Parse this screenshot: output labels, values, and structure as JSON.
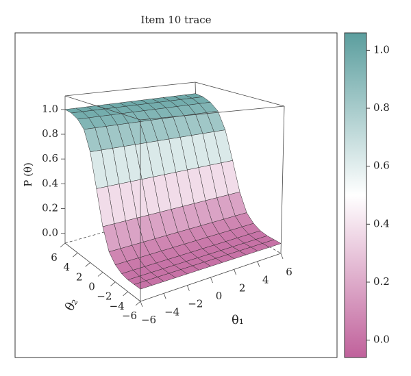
{
  "chart_data": {
    "type": "surface",
    "title": "Item 10 trace",
    "xlabel": "θ₁",
    "ylabel": "θ₂",
    "zlabel": "P (θ)",
    "x": [
      -6,
      -5,
      -4,
      -3,
      -2,
      -1,
      0,
      1,
      2,
      3,
      4,
      5,
      6
    ],
    "y": [
      -6,
      -5,
      -4,
      -3,
      -2,
      -1,
      0,
      1,
      2,
      3,
      4,
      5,
      6
    ],
    "z": [
      [
        0.0,
        0.0,
        0.0,
        0.0,
        0.0,
        0.0,
        0.0,
        0.0,
        0.0,
        0.0,
        0.0,
        0.0,
        0.0
      ],
      [
        0.0,
        0.0,
        0.0,
        0.0,
        0.0,
        0.0,
        0.0,
        0.0,
        0.0,
        0.0,
        0.0,
        0.0,
        0.0
      ],
      [
        0.0,
        0.0,
        0.0,
        0.0,
        0.0,
        0.0,
        0.0,
        0.0,
        0.0,
        0.0,
        0.0,
        0.0,
        0.0
      ],
      [
        0.01,
        0.01,
        0.01,
        0.01,
        0.01,
        0.01,
        0.01,
        0.01,
        0.01,
        0.01,
        0.01,
        0.01,
        0.01
      ],
      [
        0.04,
        0.04,
        0.04,
        0.04,
        0.04,
        0.04,
        0.04,
        0.04,
        0.04,
        0.04,
        0.04,
        0.04,
        0.04
      ],
      [
        0.1,
        0.1,
        0.1,
        0.1,
        0.1,
        0.1,
        0.1,
        0.1,
        0.1,
        0.1,
        0.1,
        0.1,
        0.1
      ],
      [
        0.25,
        0.25,
        0.25,
        0.25,
        0.25,
        0.25,
        0.25,
        0.25,
        0.25,
        0.25,
        0.25,
        0.25,
        0.25
      ],
      [
        0.5,
        0.5,
        0.5,
        0.5,
        0.5,
        0.5,
        0.5,
        0.5,
        0.5,
        0.5,
        0.5,
        0.5,
        0.5
      ],
      [
        0.75,
        0.75,
        0.75,
        0.75,
        0.75,
        0.75,
        0.75,
        0.75,
        0.75,
        0.75,
        0.75,
        0.75,
        0.75
      ],
      [
        0.9,
        0.9,
        0.9,
        0.9,
        0.9,
        0.9,
        0.9,
        0.9,
        0.9,
        0.9,
        0.9,
        0.9,
        0.9
      ],
      [
        0.96,
        0.96,
        0.96,
        0.96,
        0.96,
        0.96,
        0.96,
        0.96,
        0.96,
        0.96,
        0.96,
        0.96,
        0.96
      ],
      [
        0.99,
        0.99,
        0.99,
        0.99,
        0.99,
        0.99,
        0.99,
        0.99,
        0.99,
        0.99,
        0.99,
        0.99,
        0.99
      ],
      [
        1.0,
        1.0,
        1.0,
        1.0,
        1.0,
        1.0,
        1.0,
        1.0,
        1.0,
        1.0,
        1.0,
        1.0,
        1.0
      ]
    ],
    "xlim": [
      -6,
      6
    ],
    "ylim": [
      -6,
      6
    ],
    "zlim": [
      -0.08,
      1.11
    ],
    "xticks": [
      {
        "value": -6,
        "label": "−6"
      },
      {
        "value": -4,
        "label": "−4"
      },
      {
        "value": -2,
        "label": "−2"
      },
      0,
      2,
      4,
      6
    ],
    "yticks": [
      {
        "value": -6,
        "label": "−6"
      },
      {
        "value": -4,
        "label": "−4"
      },
      {
        "value": -2,
        "label": "−2"
      },
      0,
      2,
      4,
      6
    ],
    "zticks": [
      {
        "value": 0,
        "label": "0.0"
      },
      {
        "value": 0.2,
        "label": "0.2"
      },
      {
        "value": 0.4,
        "label": "0.4"
      },
      {
        "value": 0.6,
        "label": "0.6"
      },
      {
        "value": 0.8,
        "label": "0.8"
      },
      {
        "value": 1,
        "label": "1.0"
      }
    ],
    "colorbar": {
      "lim": [
        -0.06,
        1.06
      ],
      "ticks": [
        {
          "value": 0,
          "label": "0.0"
        },
        {
          "value": 0.2,
          "label": "0.2"
        },
        {
          "value": 0.4,
          "label": "0.4"
        },
        {
          "value": 0.6,
          "label": "0.6"
        },
        {
          "value": 0.8,
          "label": "0.8"
        },
        {
          "value": 1,
          "label": "1.0"
        }
      ],
      "colors": [
        "#c0619b",
        "#ffffff",
        "#5b9e9e"
      ]
    }
  }
}
